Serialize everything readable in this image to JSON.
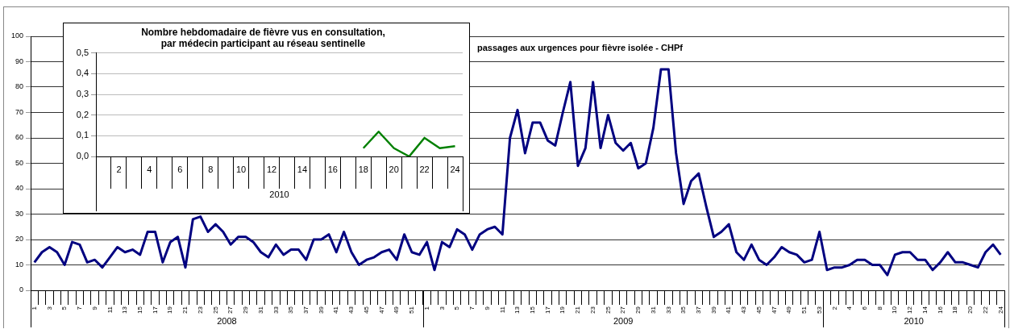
{
  "chart_data": [
    {
      "type": "line",
      "title": "passages aux urgences pour fièvre isolée - CHPf",
      "categories": [
        "1",
        null,
        "3",
        null,
        "5",
        null,
        "7",
        null,
        "9",
        null,
        "11",
        null,
        "13",
        null,
        "15",
        null,
        "17",
        null,
        "19",
        null,
        "21",
        null,
        "23",
        null,
        "25",
        null,
        "27",
        null,
        "29",
        null,
        "31",
        null,
        "33",
        null,
        "35",
        null,
        "37",
        null,
        "39",
        null,
        "41",
        null,
        "43",
        null,
        "45",
        null,
        "47",
        null,
        "49",
        null,
        "51",
        null,
        "1",
        null,
        "3",
        null,
        "5",
        null,
        "7",
        null,
        "9",
        null,
        "11",
        null,
        "13",
        null,
        "15",
        null,
        "17",
        null,
        "19",
        null,
        "21",
        null,
        "23",
        null,
        "25",
        null,
        "27",
        null,
        "29",
        null,
        "31",
        null,
        "33",
        null,
        "35",
        null,
        "37",
        null,
        "39",
        null,
        "41",
        null,
        "43",
        null,
        "45",
        null,
        "47",
        null,
        "49",
        null,
        "51",
        null,
        "53",
        null,
        "2",
        null,
        "4",
        null,
        "6",
        null,
        "8",
        null,
        "10",
        null,
        "12",
        null,
        "14",
        null,
        "16",
        null,
        "18",
        null,
        "20",
        null,
        "22",
        null,
        "24"
      ],
      "values": [
        11,
        15,
        17,
        15,
        10,
        19,
        18,
        11,
        12,
        9,
        13,
        17,
        15,
        16,
        14,
        23,
        23,
        11,
        19,
        21,
        9,
        28,
        29,
        23,
        26,
        23,
        18,
        21,
        21,
        19,
        15,
        13,
        18,
        14,
        16,
        16,
        12,
        20,
        20,
        22,
        15,
        23,
        15,
        10,
        12,
        13,
        15,
        16,
        12,
        22,
        15,
        14,
        19,
        8,
        19,
        17,
        24,
        22,
        16,
        22,
        24,
        25,
        22,
        60,
        71,
        54,
        66,
        66,
        59,
        57,
        70,
        82,
        49,
        56,
        82,
        56,
        69,
        58,
        55,
        58,
        48,
        50,
        64,
        87,
        87,
        54,
        34,
        43,
        46,
        33,
        21,
        23,
        26,
        15,
        12,
        18,
        12,
        10,
        13,
        17,
        15,
        14,
        11,
        12,
        23,
        8,
        9,
        9,
        10,
        12,
        12,
        10,
        10,
        6,
        14,
        15,
        15,
        12,
        12,
        8,
        11,
        15,
        11,
        11,
        10,
        9,
        15,
        18,
        14
      ],
      "color": "#000080",
      "ylim": [
        0,
        100
      ],
      "yticks": [
        0,
        10,
        20,
        30,
        40,
        50,
        60,
        70,
        80,
        90,
        100
      ],
      "grid": "y",
      "marker": "none",
      "line_style": "solid",
      "annotations": [
        "2008",
        "2009",
        "2010"
      ]
    },
    {
      "type": "line",
      "title": "Nombre hebdomadaire de fièvre vus en consultation,\npar médecin participant au réseau sentinelle",
      "categories": [
        null,
        "2",
        null,
        "4",
        null,
        "6",
        null,
        "8",
        null,
        "10",
        null,
        "12",
        null,
        "14",
        null,
        "16",
        null,
        "18",
        null,
        "20",
        null,
        "22",
        null,
        "24"
      ],
      "values": [
        null,
        null,
        null,
        null,
        null,
        null,
        null,
        null,
        null,
        null,
        null,
        null,
        null,
        null,
        null,
        null,
        null,
        0.04,
        0.12,
        0.04,
        0.0,
        0.09,
        0.04,
        0.05
      ],
      "color": "#008000",
      "ylim": [
        0,
        0.5
      ],
      "yticks": [
        {
          "value": 0,
          "label": "0,0"
        },
        {
          "value": 0.1,
          "label": "0,1"
        },
        {
          "value": 0.2,
          "label": "0,2"
        },
        {
          "value": 0.3,
          "label": "0,3"
        },
        {
          "value": 0.4,
          "label": "0,4"
        },
        {
          "value": 0.5,
          "label": "0,5"
        }
      ],
      "grid": "y",
      "marker": "none",
      "line_style": "solid",
      "annotations": [
        "2010"
      ]
    }
  ]
}
